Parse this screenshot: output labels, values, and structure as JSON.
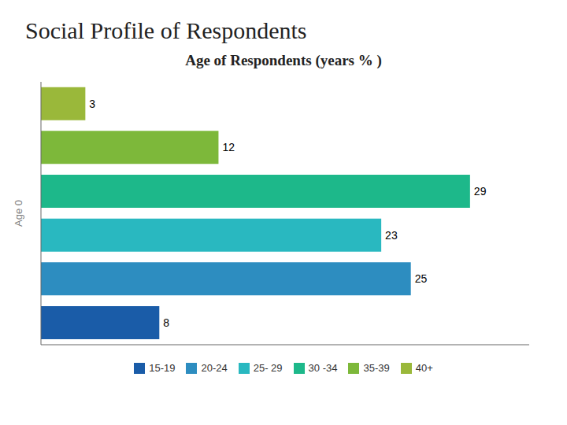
{
  "chart_data": {
    "type": "bar",
    "orientation": "horizontal",
    "title": "Social Profile of Respondents",
    "subtitle": "Age of Respondents (years % )",
    "ylabel": "Age 0",
    "categories": [
      "15-19",
      "20-24",
      "25- 29",
      "30 -34",
      "35-39",
      "40+"
    ],
    "values": [
      8,
      25,
      23,
      29,
      12,
      3
    ],
    "colors": [
      "#1a5ca8",
      "#2d8dc0",
      "#29b8c0",
      "#1db88a",
      "#7db83a",
      "#9ab83a"
    ],
    "xlim": [
      0,
      33
    ],
    "tick_labels": false,
    "data_labels": true,
    "legend": "bottom",
    "grid": false
  }
}
